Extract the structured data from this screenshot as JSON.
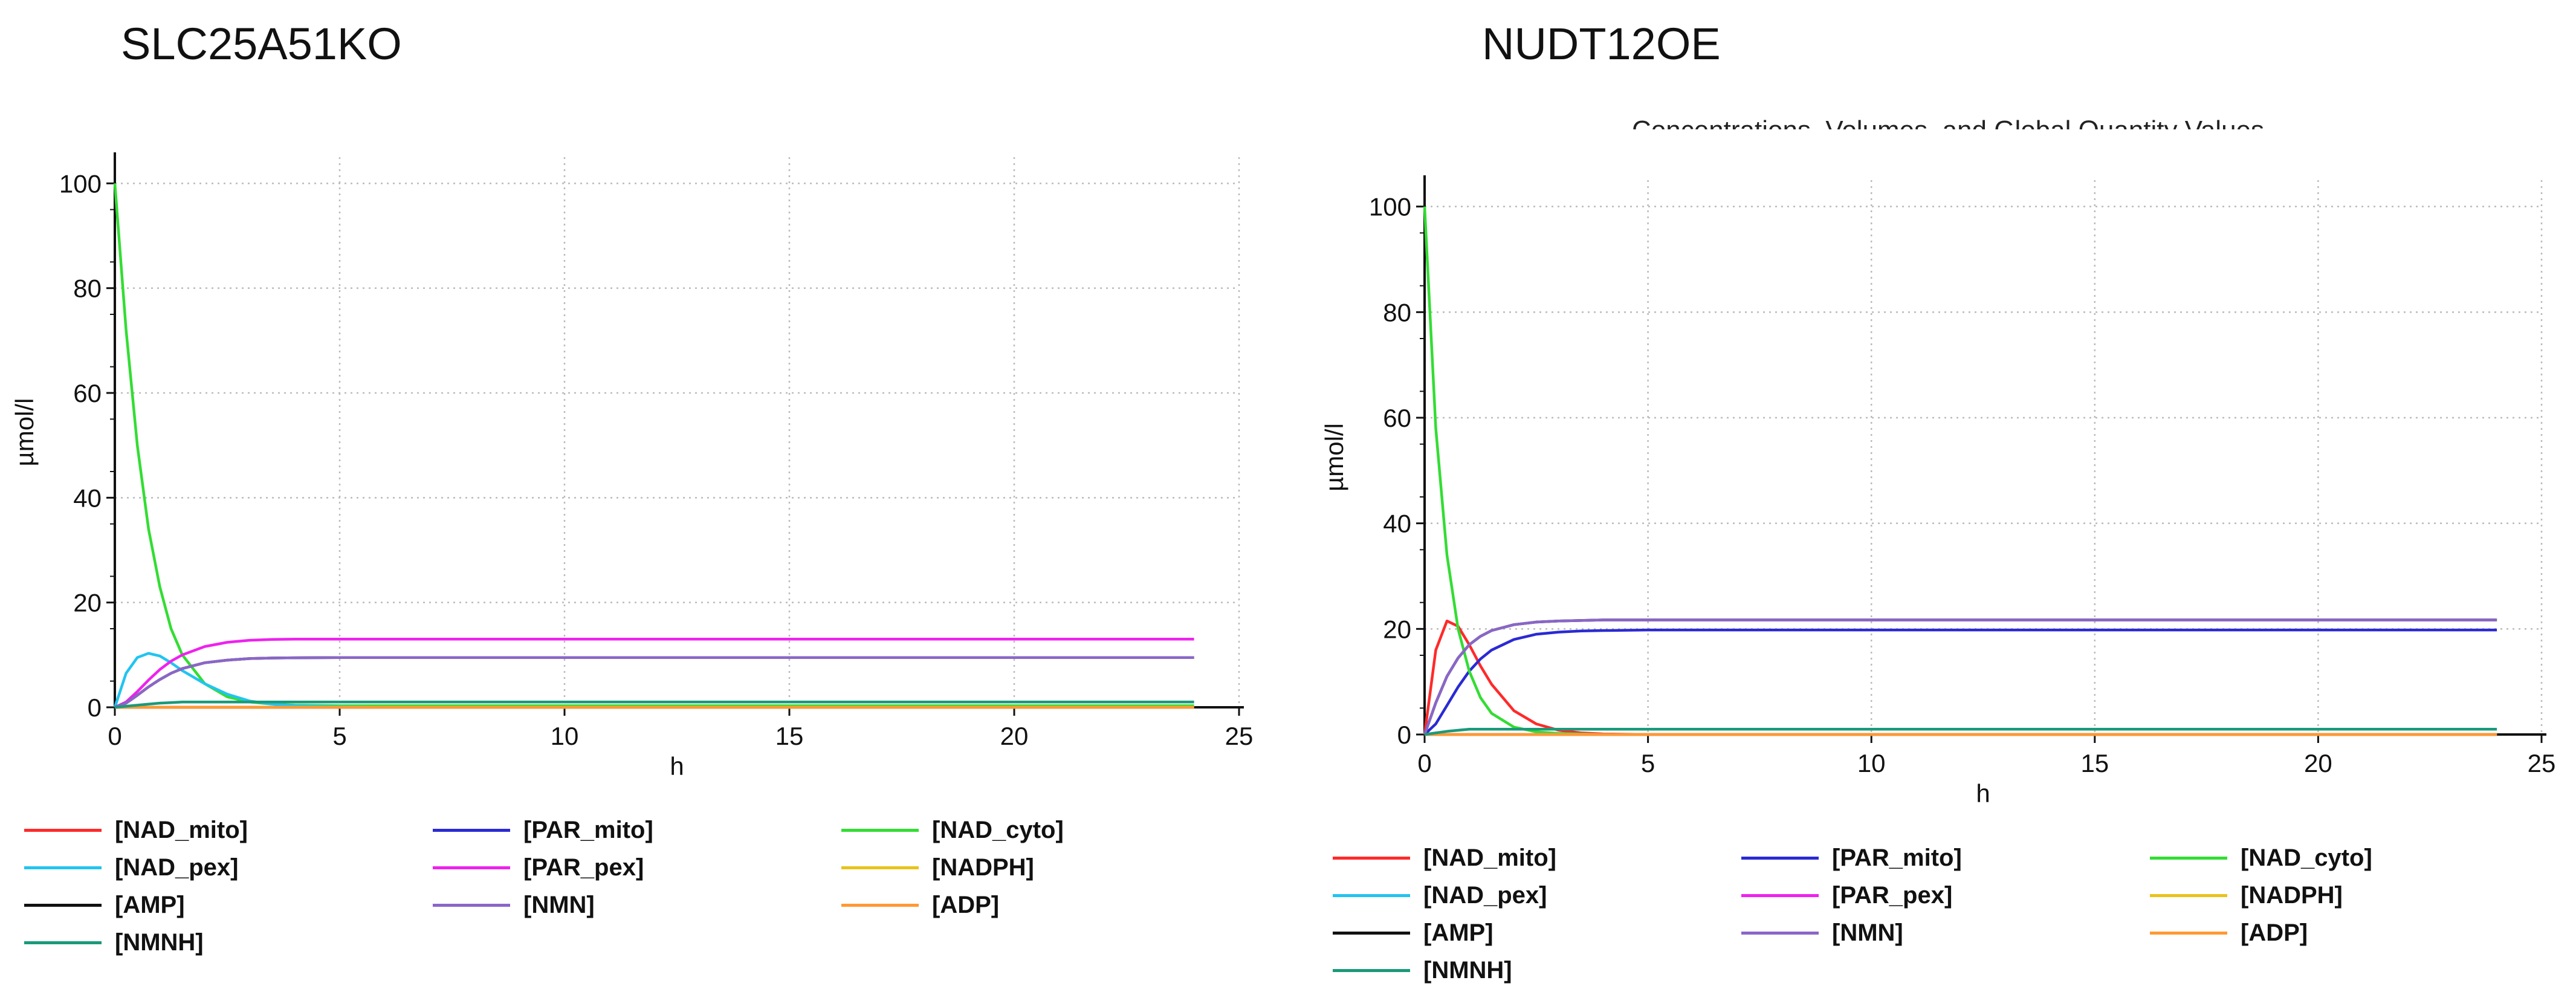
{
  "panels": {
    "left_title": "SLC25A51KO",
    "right_title": "NUDT12OE",
    "right_caption": "Concentrations, Volumes, and Global Quantity Values"
  },
  "colors": {
    "NAD_mito": "#ff2a2a",
    "PAR_mito": "#2a2ad4",
    "NAD_cyto": "#33dd33",
    "NAD_pex": "#22c4f0",
    "PAR_pex": "#ee22ee",
    "NADPH": "#e8c31a",
    "AMP": "#111111",
    "NMN": "#8a66c8",
    "ADP": "#ff9933",
    "NMNH": "#1a9a7a"
  },
  "chart_data": [
    {
      "type": "line",
      "title": "SLC25A51KO",
      "xlabel": "h",
      "ylabel": "µmol/l",
      "xlim": [
        0,
        25
      ],
      "ylim": [
        0,
        105
      ],
      "xticks": [
        "0",
        "5",
        "10",
        "15",
        "20",
        "25"
      ],
      "yticks": [
        "0",
        "20",
        "40",
        "60",
        "80",
        "100"
      ],
      "grid": true,
      "legend_position": "bottom",
      "x": [
        0,
        0.25,
        0.5,
        0.75,
        1,
        1.25,
        1.5,
        2,
        2.5,
        3,
        3.5,
        4,
        5,
        6,
        8,
        10,
        15,
        20,
        24
      ],
      "series": [
        {
          "name": "[NAD_mito]",
          "key": "NAD_mito",
          "values": [
            0,
            0,
            0,
            0,
            0,
            0,
            0,
            0,
            0,
            0,
            0,
            0,
            0,
            0,
            0,
            0,
            0,
            0,
            0
          ]
        },
        {
          "name": "[PAR_mito]",
          "key": "PAR_mito",
          "values": [
            0,
            0,
            0,
            0,
            0,
            0,
            0,
            0,
            0,
            0,
            0,
            0,
            0,
            0,
            0,
            0,
            0,
            0,
            0
          ]
        },
        {
          "name": "[NAD_cyto]",
          "key": "NAD_cyto",
          "values": [
            100,
            72,
            50,
            34,
            23,
            15,
            10,
            4.5,
            2,
            1,
            0.6,
            0.4,
            0.3,
            0.3,
            0.3,
            0.3,
            0.3,
            0.3,
            0.3
          ]
        },
        {
          "name": "[NAD_pex]",
          "key": "NAD_pex",
          "values": [
            0,
            6.5,
            9.5,
            10.3,
            9.8,
            8.5,
            7,
            4.5,
            2.5,
            1.2,
            0.6,
            0.3,
            0.1,
            0,
            0,
            0,
            0,
            0,
            0
          ]
        },
        {
          "name": "[PAR_pex]",
          "key": "PAR_pex",
          "values": [
            0,
            1,
            3,
            5.2,
            7.2,
            8.8,
            10,
            11.6,
            12.4,
            12.8,
            12.95,
            13,
            13,
            13,
            13,
            13,
            13,
            13,
            13
          ]
        },
        {
          "name": "[NADPH]",
          "key": "NADPH",
          "values": [
            0,
            0,
            0,
            0,
            0,
            0,
            0,
            0,
            0,
            0,
            0,
            0,
            0,
            0,
            0,
            0,
            0,
            0,
            0
          ]
        },
        {
          "name": "[AMP]",
          "key": "AMP",
          "values": [
            0,
            0.8,
            2.3,
            3.9,
            5.3,
            6.5,
            7.4,
            8.5,
            9,
            9.3,
            9.4,
            9.45,
            9.5,
            9.5,
            9.5,
            9.5,
            9.5,
            9.5,
            9.5
          ]
        },
        {
          "name": "[NMN]",
          "key": "NMN",
          "values": [
            0,
            0.8,
            2.3,
            3.9,
            5.3,
            6.5,
            7.4,
            8.5,
            9,
            9.3,
            9.4,
            9.45,
            9.5,
            9.5,
            9.5,
            9.5,
            9.5,
            9.5,
            9.5
          ]
        },
        {
          "name": "[ADP]",
          "key": "ADP",
          "values": [
            0,
            0,
            0,
            0,
            0,
            0,
            0,
            0,
            0,
            0,
            0,
            0,
            0,
            0,
            0,
            0,
            0,
            0,
            0
          ]
        },
        {
          "name": "[NMNH]",
          "key": "NMNH",
          "values": [
            0,
            0.2,
            0.4,
            0.6,
            0.8,
            0.9,
            1,
            1,
            1,
            1,
            1,
            1,
            1,
            1,
            1,
            1,
            1,
            1,
            1
          ]
        }
      ]
    },
    {
      "type": "line",
      "title": "NUDT12OE",
      "xlabel": "h",
      "ylabel": "µmol/l",
      "xlim": [
        0,
        25
      ],
      "ylim": [
        0,
        105
      ],
      "xticks": [
        "0",
        "5",
        "10",
        "15",
        "20",
        "25"
      ],
      "yticks": [
        "0",
        "20",
        "40",
        "60",
        "80",
        "100"
      ],
      "grid": true,
      "legend_position": "bottom",
      "x": [
        0,
        0.25,
        0.5,
        0.75,
        1,
        1.25,
        1.5,
        2,
        2.5,
        3,
        3.5,
        4,
        5,
        6,
        8,
        10,
        15,
        20,
        24
      ],
      "series": [
        {
          "name": "[NAD_mito]",
          "key": "NAD_mito",
          "values": [
            0,
            16,
            21.5,
            20.5,
            17,
            13,
            9.5,
            4.5,
            2,
            0.8,
            0.3,
            0.1,
            0,
            0,
            0,
            0,
            0,
            0,
            0
          ]
        },
        {
          "name": "[PAR_mito]",
          "key": "PAR_mito",
          "values": [
            0,
            2,
            5.5,
            9,
            12,
            14.3,
            16,
            18,
            19,
            19.4,
            19.6,
            19.7,
            19.8,
            19.8,
            19.8,
            19.8,
            19.8,
            19.8,
            19.8
          ]
        },
        {
          "name": "[NAD_cyto]",
          "key": "NAD_cyto",
          "values": [
            100,
            58,
            34,
            20,
            12,
            7,
            4,
            1.4,
            0.5,
            0.2,
            0.1,
            0,
            0,
            0,
            0,
            0,
            0,
            0,
            0
          ]
        },
        {
          "name": "[NAD_pex]",
          "key": "NAD_pex",
          "values": [
            0,
            0,
            0,
            0,
            0,
            0,
            0,
            0,
            0,
            0,
            0,
            0,
            0,
            0,
            0,
            0,
            0,
            0,
            0
          ]
        },
        {
          "name": "[PAR_pex]",
          "key": "PAR_pex",
          "values": [
            0,
            0,
            0,
            0,
            0,
            0,
            0,
            0,
            0,
            0,
            0,
            0,
            0,
            0,
            0,
            0,
            0,
            0,
            0
          ]
        },
        {
          "name": "[NADPH]",
          "key": "NADPH",
          "values": [
            0,
            0,
            0,
            0,
            0,
            0,
            0,
            0,
            0,
            0,
            0,
            0,
            0,
            0,
            0,
            0,
            0,
            0,
            0
          ]
        },
        {
          "name": "[AMP]",
          "key": "AMP",
          "values": [
            0,
            6,
            11,
            14.5,
            17,
            18.6,
            19.7,
            20.8,
            21.3,
            21.5,
            21.6,
            21.7,
            21.7,
            21.7,
            21.7,
            21.7,
            21.7,
            21.7,
            21.7
          ]
        },
        {
          "name": "[NMN]",
          "key": "NMN",
          "values": [
            0,
            6,
            11,
            14.5,
            17,
            18.6,
            19.7,
            20.8,
            21.3,
            21.5,
            21.6,
            21.7,
            21.7,
            21.7,
            21.7,
            21.7,
            21.7,
            21.7,
            21.7
          ]
        },
        {
          "name": "[ADP]",
          "key": "ADP",
          "values": [
            0,
            0,
            0,
            0,
            0,
            0,
            0,
            0,
            0,
            0,
            0,
            0,
            0,
            0,
            0,
            0,
            0,
            0,
            0
          ]
        },
        {
          "name": "[NMNH]",
          "key": "NMNH",
          "values": [
            0,
            0.3,
            0.6,
            0.8,
            1,
            1,
            1,
            1,
            1,
            1,
            1,
            1,
            1,
            1,
            1,
            1,
            1,
            1,
            1
          ]
        }
      ]
    }
  ]
}
